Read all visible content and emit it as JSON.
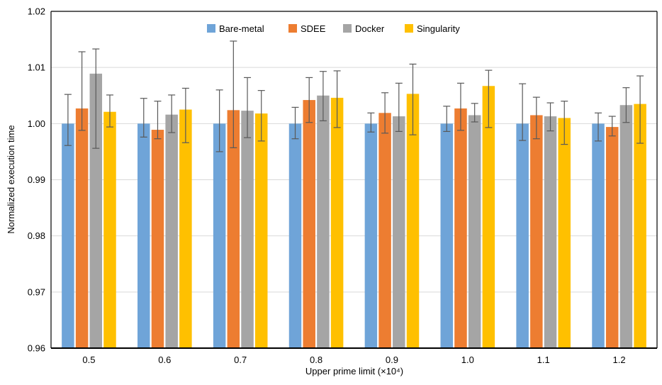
{
  "chart_data": {
    "type": "bar",
    "xlabel": "Upper prime limit (×10⁴)",
    "ylabel": "Normalized execution time",
    "ylim": [
      0.96,
      1.02
    ],
    "yticks": [
      "0.96",
      "0.97",
      "0.98",
      "0.99",
      "1.00",
      "1.01",
      "1.02"
    ],
    "yticks_values": [
      0.96,
      0.97,
      0.98,
      0.99,
      1.0,
      1.01,
      1.02
    ],
    "grid": true,
    "legend_position": "top",
    "categories": [
      "0.5",
      "0.6",
      "0.7",
      "0.8",
      "0.9",
      "1.0",
      "1.1",
      "1.2"
    ],
    "series": [
      {
        "name": "Bare-metal",
        "color": "#6FA4D8",
        "values": [
          1.0,
          1.0,
          1.0,
          1.0,
          1.0,
          1.0,
          1.0,
          1.0
        ],
        "err_low": [
          0.9961,
          0.9976,
          0.995,
          0.9973,
          0.9985,
          0.9986,
          0.997,
          0.9969
        ],
        "err_high": [
          1.0052,
          1.0045,
          1.006,
          1.0029,
          1.0019,
          1.0031,
          1.0071,
          1.0019
        ]
      },
      {
        "name": "SDEE",
        "color": "#ED7D31",
        "values": [
          1.0027,
          0.9989,
          1.0024,
          1.0042,
          1.0019,
          1.0027,
          1.0015,
          0.9994
        ],
        "err_low": [
          0.9988,
          0.9973,
          0.9957,
          1.0002,
          0.9983,
          0.9988,
          0.9973,
          0.9978
        ],
        "err_high": [
          1.0128,
          1.004,
          1.0147,
          1.0082,
          1.0055,
          1.0072,
          1.0047,
          1.0013
        ]
      },
      {
        "name": "Docker",
        "color": "#A5A5A5",
        "values": [
          1.0089,
          1.0016,
          1.0023,
          1.005,
          1.0013,
          1.0015,
          1.0013,
          1.0033
        ],
        "err_low": [
          0.9956,
          0.9984,
          0.9975,
          1.0005,
          0.9986,
          1.0003,
          0.9987,
          1.0002
        ],
        "err_high": [
          1.0133,
          1.0051,
          1.0082,
          1.0093,
          1.0072,
          1.0036,
          1.0037,
          1.0064
        ]
      },
      {
        "name": "Singularity",
        "color": "#FFC000",
        "values": [
          1.0021,
          1.0025,
          1.0018,
          1.0046,
          1.0053,
          1.0067,
          1.001,
          1.0035
        ],
        "err_low": [
          0.9994,
          0.9966,
          0.9969,
          0.9993,
          0.998,
          0.9993,
          0.9963,
          0.9965
        ],
        "err_high": [
          1.0051,
          1.0063,
          1.0059,
          1.0094,
          1.0106,
          1.0095,
          1.004,
          1.0085
        ]
      }
    ]
  }
}
